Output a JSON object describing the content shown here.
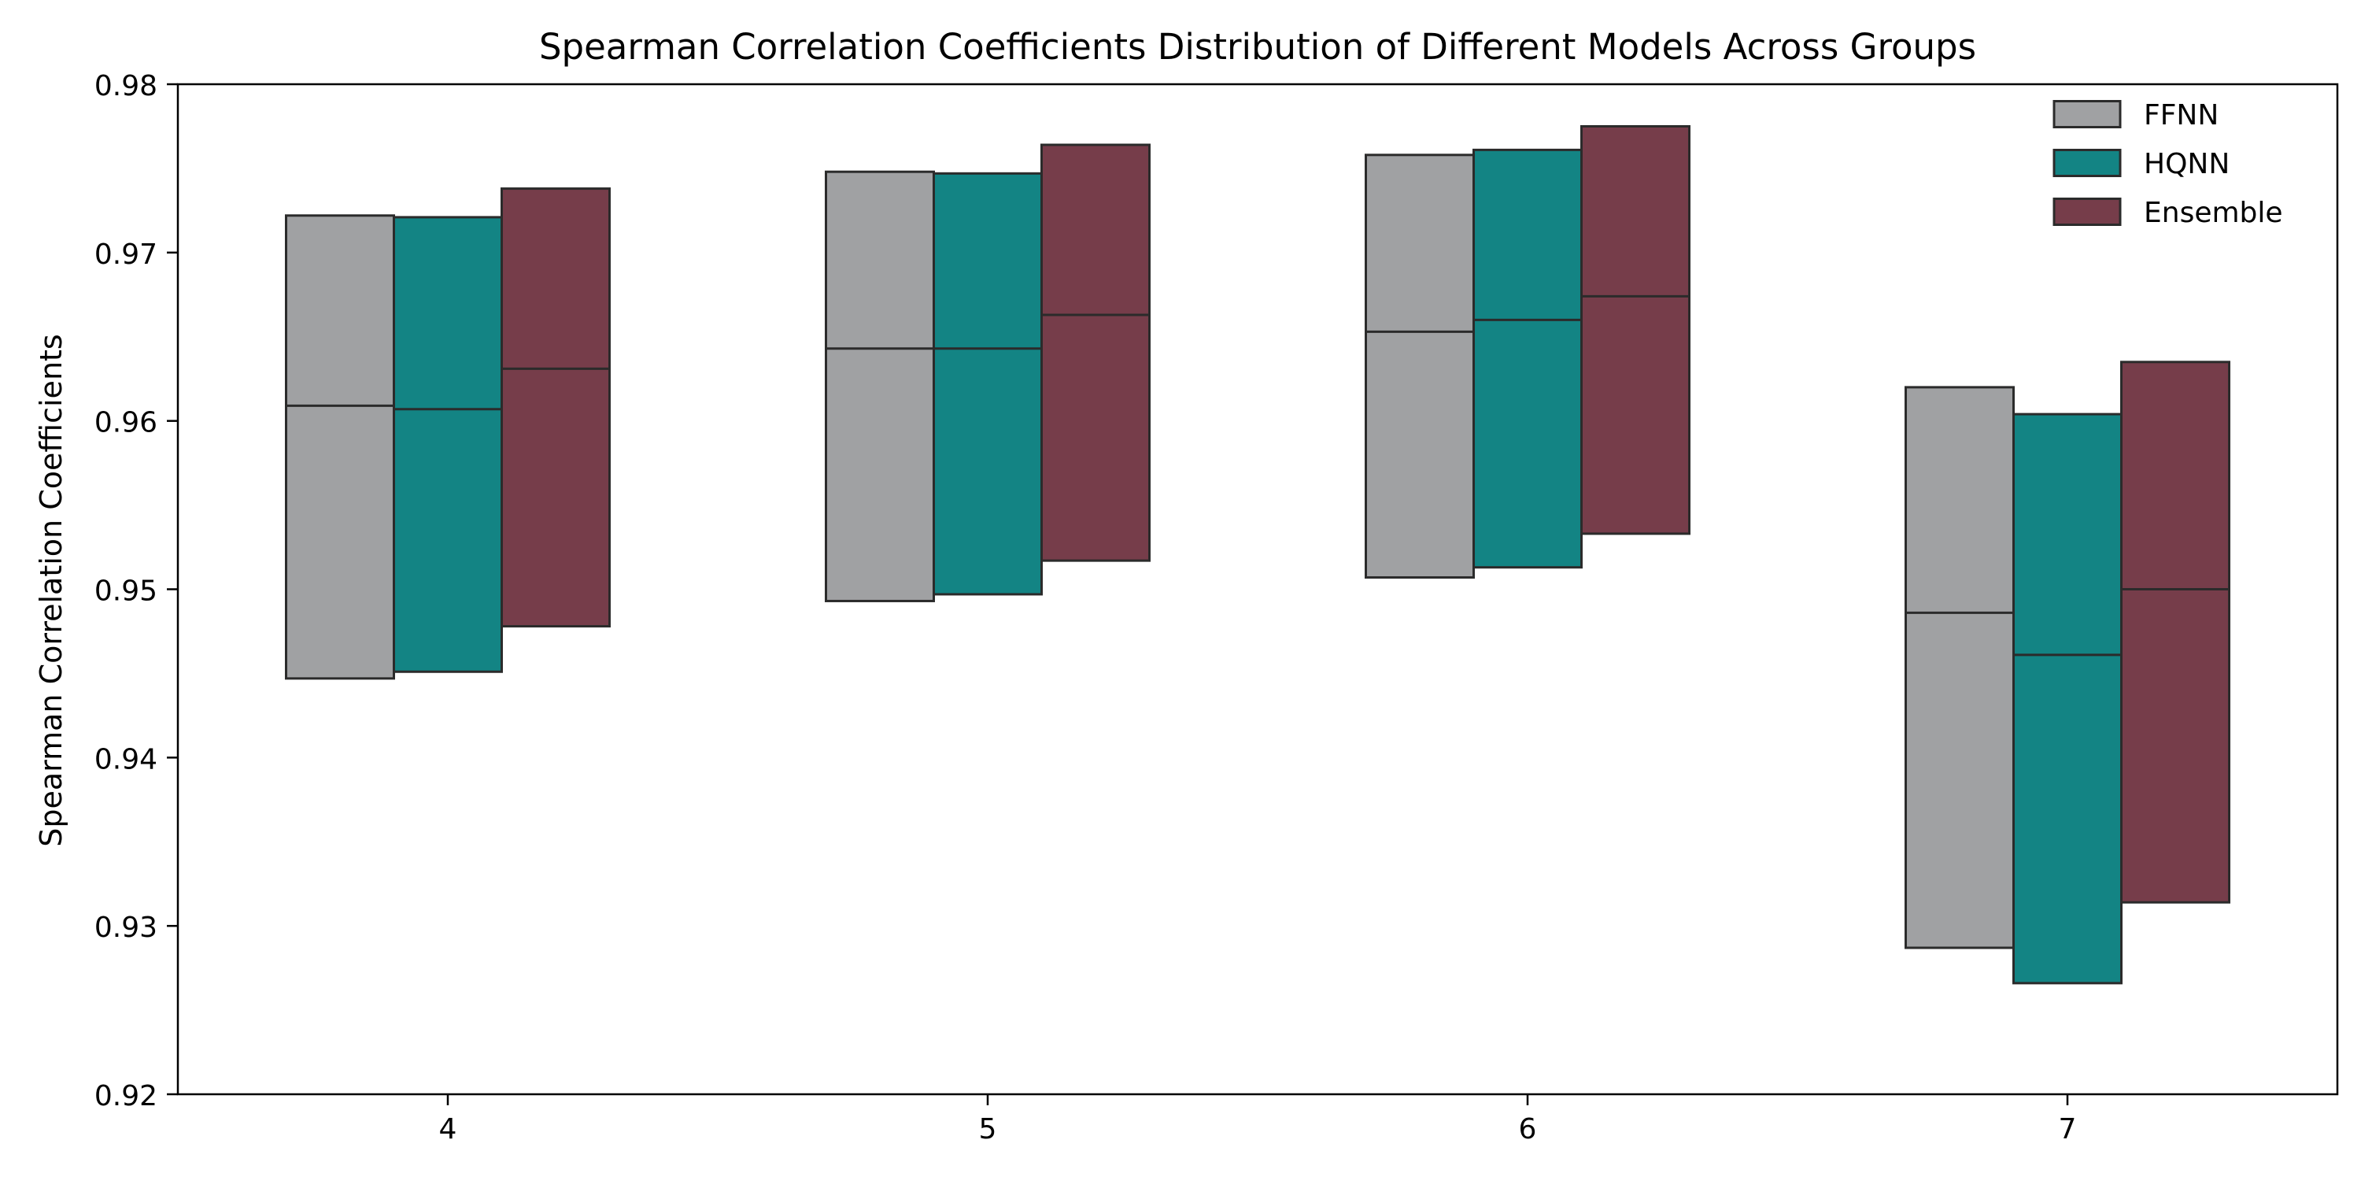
{
  "chart_data": {
    "type": "box",
    "title": "Spearman Correlation Coefficients Distribution of Different Models Across Groups",
    "xlabel": "",
    "ylabel": "Spearman Correlation Coefficients",
    "categories": [
      "4",
      "5",
      "6",
      "7"
    ],
    "ylim": [
      0.92,
      0.98
    ],
    "yticks": [
      0.92,
      0.93,
      0.94,
      0.95,
      0.96,
      0.97,
      0.98
    ],
    "ytick_labels": [
      "0.92",
      "0.93",
      "0.94",
      "0.95",
      "0.96",
      "0.97",
      "0.98"
    ],
    "grid": false,
    "legend_position": "top-right",
    "series": [
      {
        "name": "FFNN",
        "color": "#a0a1a3",
        "boxes": [
          {
            "q1": 0.9447,
            "median": 0.9609,
            "q3": 0.9722
          },
          {
            "q1": 0.9493,
            "median": 0.9643,
            "q3": 0.9748
          },
          {
            "q1": 0.9507,
            "median": 0.9653,
            "q3": 0.9758
          },
          {
            "q1": 0.9287,
            "median": 0.9486,
            "q3": 0.962
          }
        ]
      },
      {
        "name": "HQNN",
        "color": "#138484",
        "boxes": [
          {
            "q1": 0.9451,
            "median": 0.9607,
            "q3": 0.9721
          },
          {
            "q1": 0.9497,
            "median": 0.9643,
            "q3": 0.9747
          },
          {
            "q1": 0.9513,
            "median": 0.966,
            "q3": 0.9761
          },
          {
            "q1": 0.9266,
            "median": 0.9461,
            "q3": 0.9604
          }
        ]
      },
      {
        "name": "Ensemble",
        "color": "#763d4a",
        "boxes": [
          {
            "q1": 0.9478,
            "median": 0.9631,
            "q3": 0.9738
          },
          {
            "q1": 0.9517,
            "median": 0.9663,
            "q3": 0.9764
          },
          {
            "q1": 0.9533,
            "median": 0.9674,
            "q3": 0.9775
          },
          {
            "q1": 0.9314,
            "median": 0.95,
            "q3": 0.9635
          }
        ]
      }
    ]
  }
}
